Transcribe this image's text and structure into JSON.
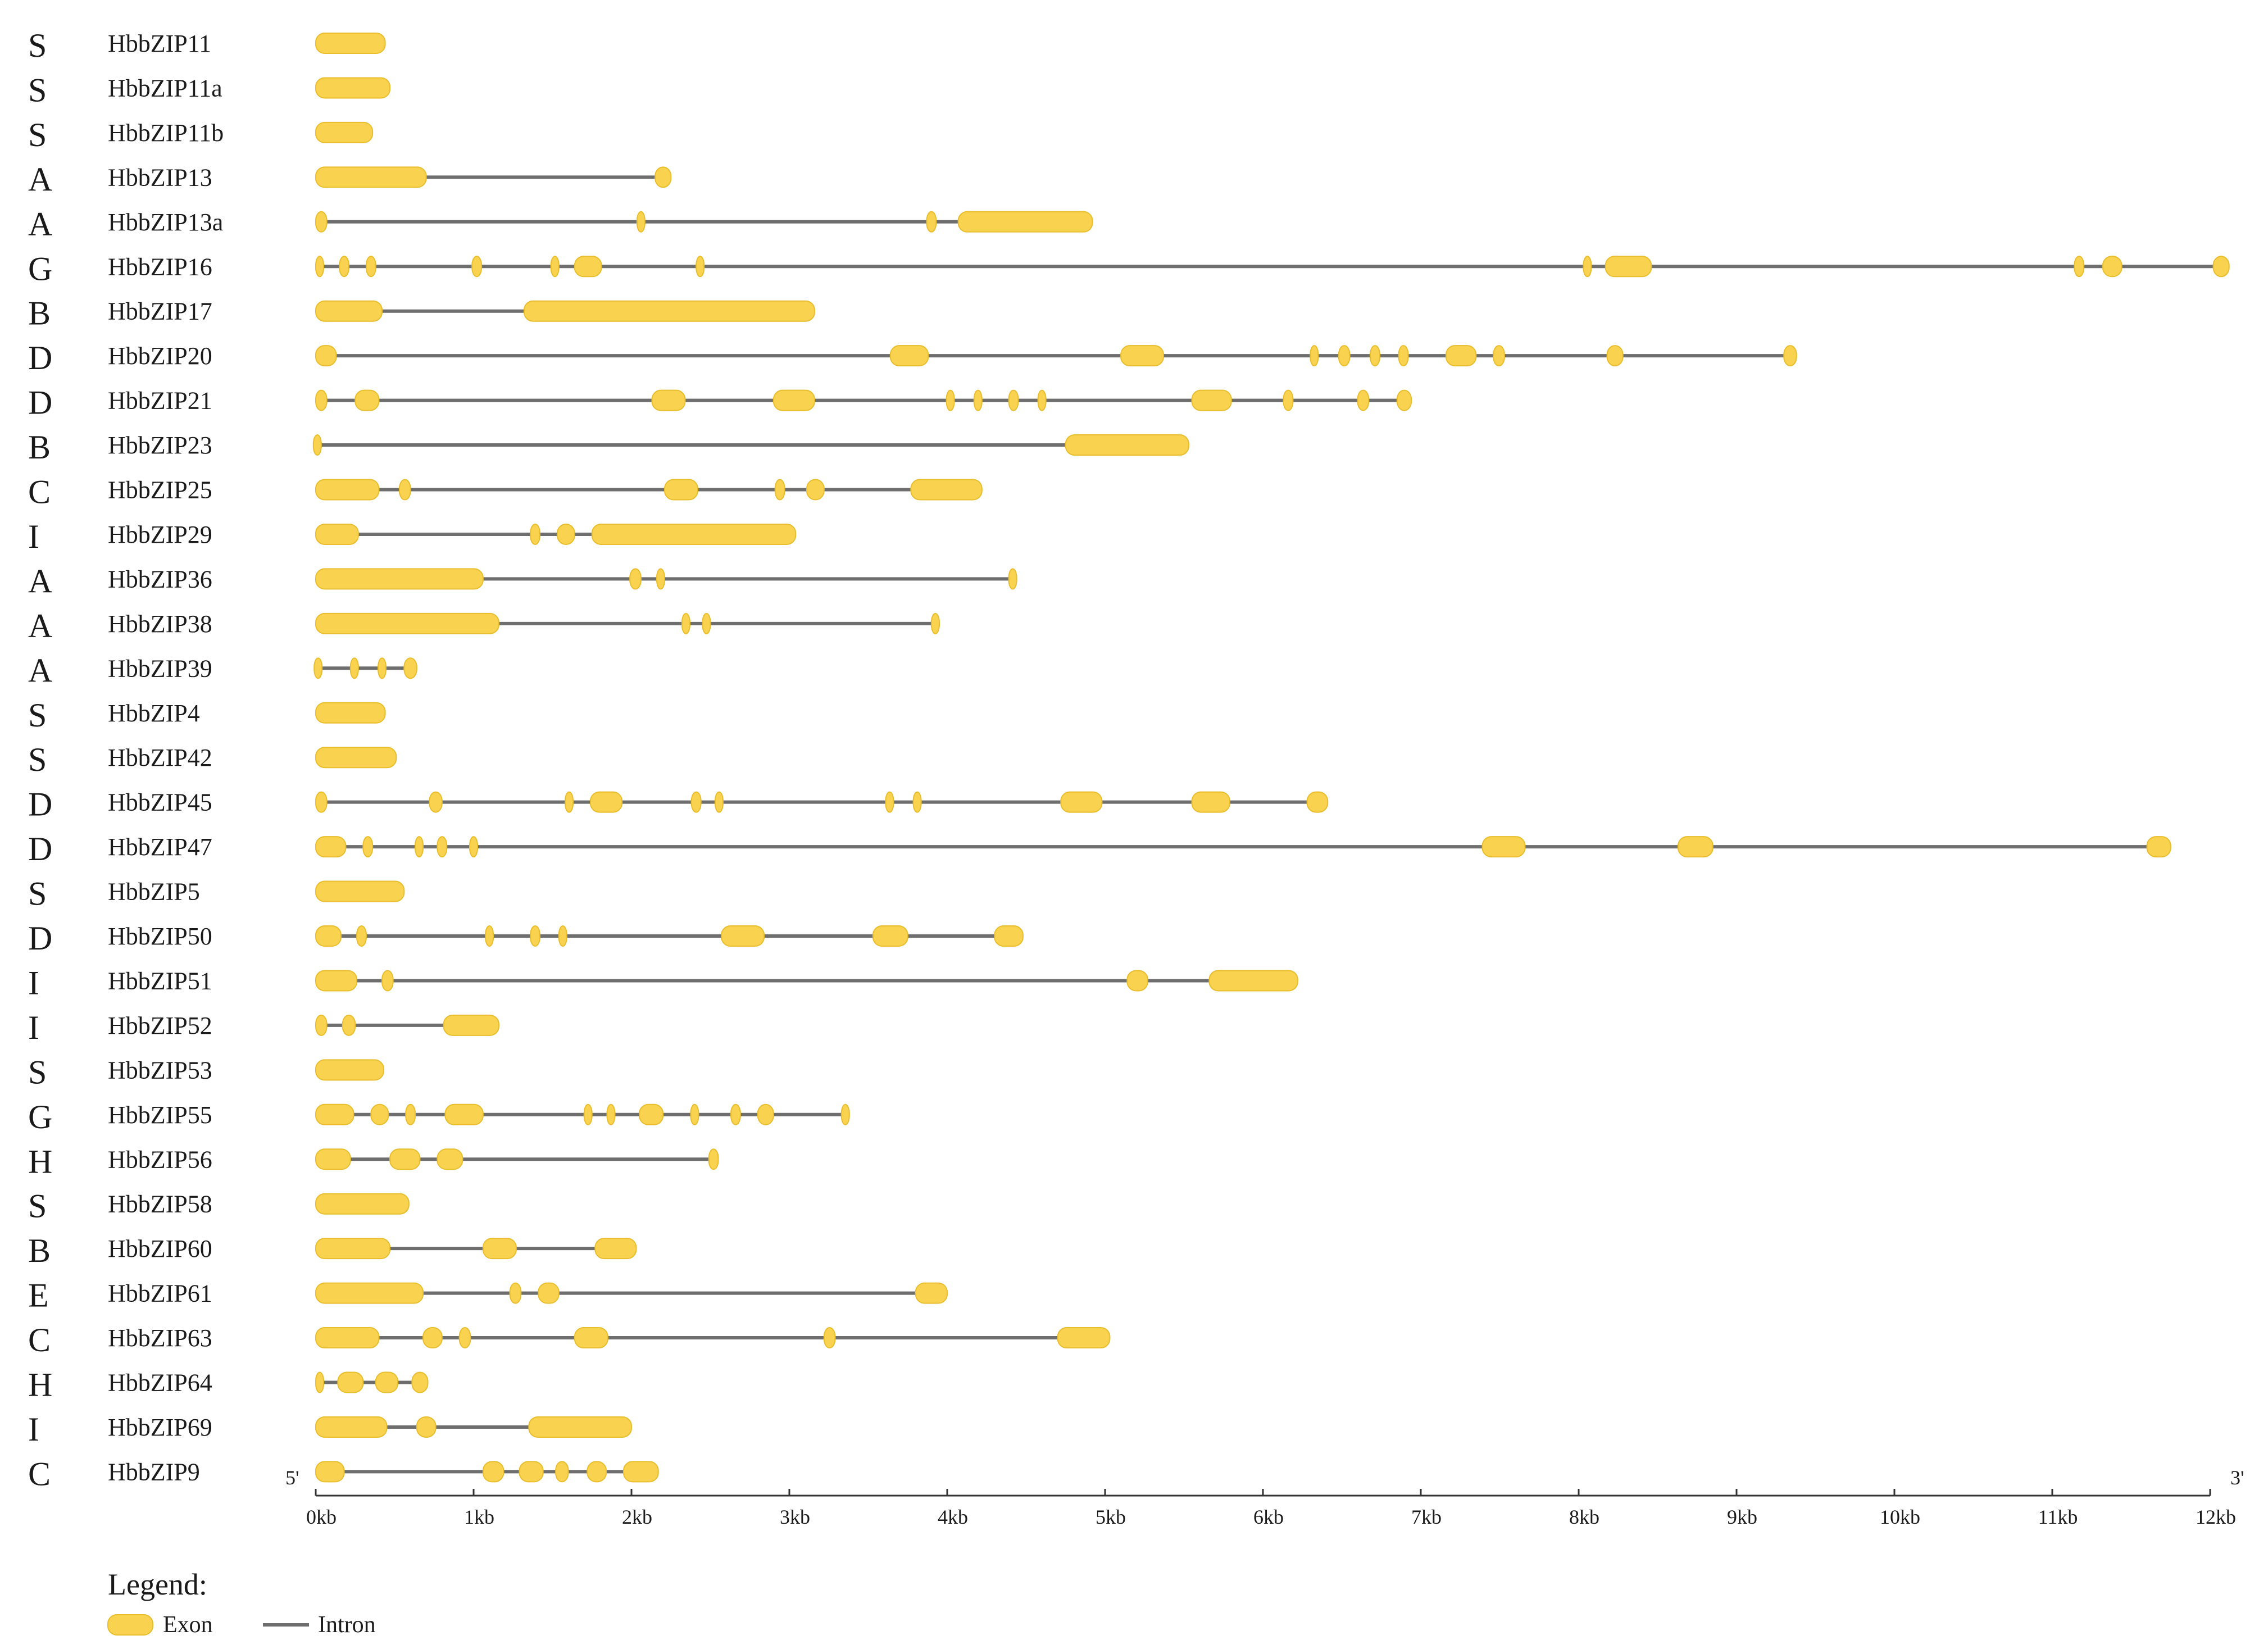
{
  "colors": {
    "exon_fill": "#F9D34F",
    "exon_stroke": "#E8BE2E",
    "intron": "#6E6E6E",
    "text": "#1a1a1a",
    "axis": "#333333"
  },
  "chart_data": {
    "type": "gene-structure",
    "scale_unit": "kb",
    "xlim": [
      0,
      12
    ],
    "ticks": [
      "0kb",
      "1kb",
      "2kb",
      "3kb",
      "4kb",
      "5kb",
      "6kb",
      "7kb",
      "8kb",
      "9kb",
      "10kb",
      "11kb",
      "12kb"
    ],
    "end_labels": {
      "five_prime": "5'",
      "three_prime": "3'"
    },
    "legend": {
      "title": "Legend:",
      "exon_label": "Exon",
      "intron_label": "Intron"
    },
    "genes": [
      {
        "group": "S",
        "name": "HbbZIP11",
        "exons": [
          [
            0.0,
            0.44
          ]
        ]
      },
      {
        "group": "S",
        "name": "HbbZIP11a",
        "exons": [
          [
            0.0,
            0.47
          ]
        ]
      },
      {
        "group": "S",
        "name": "HbbZIP11b",
        "exons": [
          [
            0.0,
            0.36
          ]
        ]
      },
      {
        "group": "A",
        "name": "HbbZIP13",
        "exons": [
          [
            0.0,
            0.7
          ],
          [
            2.15,
            2.25
          ]
        ]
      },
      {
        "group": "A",
        "name": "HbbZIP13a",
        "exons": [
          [
            0.0,
            0.07
          ],
          [
            2.05,
            2.07
          ],
          [
            3.87,
            3.93
          ],
          [
            4.07,
            4.92
          ]
        ]
      },
      {
        "group": "G",
        "name": "HbbZIP16",
        "exons": [
          [
            0.0,
            0.05
          ],
          [
            0.15,
            0.21
          ],
          [
            0.32,
            0.38
          ],
          [
            0.99,
            1.05
          ],
          [
            1.49,
            1.54
          ],
          [
            1.64,
            1.81
          ],
          [
            2.41,
            2.46
          ],
          [
            8.04,
            8.07
          ],
          [
            8.17,
            8.46
          ],
          [
            11.14,
            11.2
          ],
          [
            11.32,
            11.44
          ],
          [
            12.02,
            12.12
          ]
        ]
      },
      {
        "group": "B",
        "name": "HbbZIP17",
        "exons": [
          [
            0.0,
            0.42
          ],
          [
            1.32,
            3.16
          ]
        ]
      },
      {
        "group": "D",
        "name": "HbbZIP20",
        "exons": [
          [
            0.0,
            0.13
          ],
          [
            3.64,
            3.88
          ],
          [
            5.1,
            5.37
          ],
          [
            6.3,
            6.35
          ],
          [
            6.48,
            6.55
          ],
          [
            6.68,
            6.74
          ],
          [
            6.86,
            6.92
          ],
          [
            7.16,
            7.35
          ],
          [
            7.46,
            7.53
          ],
          [
            8.18,
            8.28
          ],
          [
            9.3,
            9.38
          ]
        ]
      },
      {
        "group": "D",
        "name": "HbbZIP21",
        "exons": [
          [
            0.0,
            0.07
          ],
          [
            0.25,
            0.4
          ],
          [
            2.13,
            2.34
          ],
          [
            2.9,
            3.16
          ],
          [
            4.0,
            4.04
          ],
          [
            4.17,
            4.22
          ],
          [
            4.39,
            4.45
          ],
          [
            4.58,
            4.62
          ],
          [
            5.55,
            5.8
          ],
          [
            6.13,
            6.19
          ],
          [
            6.6,
            6.67
          ],
          [
            6.85,
            6.94
          ]
        ]
      },
      {
        "group": "B",
        "name": "HbbZIP23",
        "exons": [
          [
            0.0,
            0.02
          ],
          [
            4.75,
            5.53
          ]
        ]
      },
      {
        "group": "C",
        "name": "HbbZIP25",
        "exons": [
          [
            0.0,
            0.4
          ],
          [
            0.53,
            0.6
          ],
          [
            2.21,
            2.42
          ],
          [
            2.91,
            2.97
          ],
          [
            3.11,
            3.22
          ],
          [
            3.77,
            4.22
          ]
        ]
      },
      {
        "group": "I",
        "name": "HbbZIP29",
        "exons": [
          [
            0.0,
            0.27
          ],
          [
            1.36,
            1.42
          ],
          [
            1.53,
            1.64
          ],
          [
            1.75,
            3.04
          ]
        ]
      },
      {
        "group": "A",
        "name": "HbbZIP36",
        "exons": [
          [
            0.0,
            1.06
          ],
          [
            1.99,
            2.06
          ],
          [
            2.17,
            2.2
          ],
          [
            4.39,
            4.44
          ]
        ]
      },
      {
        "group": "A",
        "name": "HbbZIP38",
        "exons": [
          [
            0.0,
            1.16
          ],
          [
            2.32,
            2.37
          ],
          [
            2.46,
            2.49
          ],
          [
            3.9,
            3.95
          ]
        ]
      },
      {
        "group": "A",
        "name": "HbbZIP39",
        "exons": [
          [
            0.0,
            0.03
          ],
          [
            0.22,
            0.27
          ],
          [
            0.41,
            0.43
          ],
          [
            0.56,
            0.64
          ]
        ]
      },
      {
        "group": "S",
        "name": "HbbZIP4",
        "exons": [
          [
            0.0,
            0.44
          ]
        ]
      },
      {
        "group": "S",
        "name": "HbbZIP42",
        "exons": [
          [
            0.0,
            0.51
          ]
        ]
      },
      {
        "group": "D",
        "name": "HbbZIP45",
        "exons": [
          [
            0.0,
            0.07
          ],
          [
            0.72,
            0.8
          ],
          [
            1.58,
            1.63
          ],
          [
            1.74,
            1.94
          ],
          [
            2.38,
            2.44
          ],
          [
            2.53,
            2.58
          ],
          [
            3.61,
            3.66
          ],
          [
            3.79,
            3.83
          ],
          [
            4.72,
            4.98
          ],
          [
            5.55,
            5.79
          ],
          [
            6.28,
            6.41
          ]
        ]
      },
      {
        "group": "D",
        "name": "HbbZIP47",
        "exons": [
          [
            0.0,
            0.19
          ],
          [
            0.3,
            0.36
          ],
          [
            0.63,
            0.68
          ],
          [
            0.77,
            0.83
          ],
          [
            0.98,
            1.02
          ],
          [
            7.39,
            7.66
          ],
          [
            8.63,
            8.85
          ],
          [
            11.6,
            11.75
          ]
        ]
      },
      {
        "group": "S",
        "name": "HbbZIP5",
        "exons": [
          [
            0.0,
            0.56
          ]
        ]
      },
      {
        "group": "D",
        "name": "HbbZIP50",
        "exons": [
          [
            0.0,
            0.16
          ],
          [
            0.26,
            0.32
          ],
          [
            1.08,
            1.12
          ],
          [
            1.36,
            1.42
          ],
          [
            1.54,
            1.59
          ],
          [
            2.57,
            2.84
          ],
          [
            3.53,
            3.75
          ],
          [
            4.3,
            4.48
          ]
        ]
      },
      {
        "group": "I",
        "name": "HbbZIP51",
        "exons": [
          [
            0.0,
            0.26
          ],
          [
            0.42,
            0.49
          ],
          [
            5.14,
            5.27
          ],
          [
            5.66,
            6.22
          ]
        ]
      },
      {
        "group": "I",
        "name": "HbbZIP52",
        "exons": [
          [
            0.0,
            0.07
          ],
          [
            0.17,
            0.25
          ],
          [
            0.81,
            1.16
          ]
        ]
      },
      {
        "group": "S",
        "name": "HbbZIP53",
        "exons": [
          [
            0.0,
            0.43
          ]
        ]
      },
      {
        "group": "G",
        "name": "HbbZIP55",
        "exons": [
          [
            0.0,
            0.24
          ],
          [
            0.35,
            0.46
          ],
          [
            0.57,
            0.63
          ],
          [
            0.82,
            1.06
          ],
          [
            1.71,
            1.74
          ],
          [
            1.85,
            1.89
          ],
          [
            2.05,
            2.2
          ],
          [
            2.38,
            2.42
          ],
          [
            2.63,
            2.69
          ],
          [
            2.8,
            2.9
          ],
          [
            3.33,
            3.38
          ]
        ]
      },
      {
        "group": "H",
        "name": "HbbZIP56",
        "exons": [
          [
            0.0,
            0.22
          ],
          [
            0.47,
            0.66
          ],
          [
            0.77,
            0.93
          ],
          [
            2.49,
            2.55
          ]
        ]
      },
      {
        "group": "S",
        "name": "HbbZIP58",
        "exons": [
          [
            0.0,
            0.59
          ]
        ]
      },
      {
        "group": "B",
        "name": "HbbZIP60",
        "exons": [
          [
            0.0,
            0.47
          ],
          [
            1.06,
            1.27
          ],
          [
            1.77,
            2.03
          ]
        ]
      },
      {
        "group": "E",
        "name": "HbbZIP61",
        "exons": [
          [
            0.0,
            0.68
          ],
          [
            1.23,
            1.3
          ],
          [
            1.41,
            1.54
          ],
          [
            3.8,
            4.0
          ]
        ]
      },
      {
        "group": "C",
        "name": "HbbZIP63",
        "exons": [
          [
            0.0,
            0.4
          ],
          [
            0.68,
            0.8
          ],
          [
            0.91,
            0.98
          ],
          [
            1.64,
            1.85
          ],
          [
            3.22,
            3.29
          ],
          [
            4.7,
            5.03
          ]
        ]
      },
      {
        "group": "H",
        "name": "HbbZIP64",
        "exons": [
          [
            0.0,
            0.05
          ],
          [
            0.14,
            0.3
          ],
          [
            0.38,
            0.52
          ],
          [
            0.61,
            0.71
          ]
        ]
      },
      {
        "group": "I",
        "name": "HbbZIP69",
        "exons": [
          [
            0.0,
            0.45
          ],
          [
            0.64,
            0.76
          ],
          [
            1.35,
            2.0
          ]
        ]
      },
      {
        "group": "C",
        "name": "HbbZIP9",
        "exons": [
          [
            0.0,
            0.18
          ],
          [
            1.06,
            1.19
          ],
          [
            1.29,
            1.44
          ],
          [
            1.52,
            1.6
          ],
          [
            1.72,
            1.84
          ],
          [
            1.95,
            2.17
          ]
        ]
      }
    ]
  }
}
